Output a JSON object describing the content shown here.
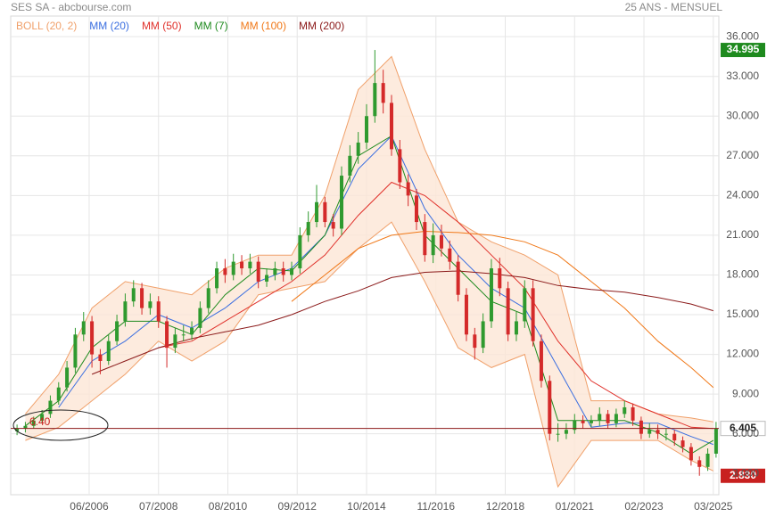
{
  "chart_data": {
    "type": "candlestick",
    "title": "SES SA - abcbourse.com",
    "subtitle": "25 ANS - MENSUEL",
    "xlim": [
      "03/2004",
      "05/2025"
    ],
    "xticks": [
      "06/2006",
      "07/2008",
      "08/2010",
      "09/2012",
      "10/2014",
      "11/2016",
      "12/2018",
      "01/2021",
      "02/2023",
      "03/2025"
    ],
    "ylim": [
      1.4,
      36.75
    ],
    "yticks": [
      {
        "value": 3,
        "label": "3.000"
      },
      {
        "value": 6,
        "label": "6.000"
      },
      {
        "value": 9,
        "label": "9.000"
      },
      {
        "value": 12,
        "label": "12.000"
      },
      {
        "value": 15,
        "label": "15.000"
      },
      {
        "value": 18,
        "label": "18.000"
      },
      {
        "value": 21,
        "label": "21.000"
      },
      {
        "value": 24,
        "label": "24.000"
      },
      {
        "value": 27,
        "label": "27.000"
      },
      {
        "value": 30,
        "label": "30.000"
      },
      {
        "value": 33,
        "label": "33.000"
      },
      {
        "value": 36,
        "label": "36.000"
      }
    ],
    "grid": true,
    "up_color": "#2f9a2f",
    "down_color": "#d42a2a",
    "candles": {
      "x": [
        "04/2004",
        "07/2004",
        "10/2004",
        "01/2005",
        "04/2005",
        "07/2005",
        "10/2005",
        "01/2006",
        "04/2006",
        "07/2006",
        "10/2006",
        "01/2007",
        "04/2007",
        "07/2007",
        "10/2007",
        "01/2008",
        "04/2008",
        "07/2008",
        "10/2008",
        "01/2009",
        "04/2009",
        "07/2009",
        "10/2009",
        "01/2010",
        "04/2010",
        "07/2010",
        "10/2010",
        "01/2011",
        "04/2011",
        "07/2011",
        "10/2011",
        "01/2012",
        "04/2012",
        "07/2012",
        "10/2012",
        "01/2013",
        "04/2013",
        "07/2013",
        "10/2013",
        "01/2014",
        "04/2014",
        "07/2014",
        "10/2014",
        "01/2015",
        "04/2015",
        "07/2015",
        "10/2015",
        "01/2016",
        "04/2016",
        "07/2016",
        "10/2016",
        "01/2017",
        "04/2017",
        "07/2017",
        "10/2017",
        "01/2018",
        "04/2018",
        "07/2018",
        "10/2018",
        "01/2019",
        "04/2019",
        "07/2019",
        "10/2019",
        "01/2020",
        "04/2020",
        "07/2020",
        "10/2020",
        "01/2021",
        "04/2021",
        "07/2021",
        "10/2021",
        "01/2022",
        "04/2022",
        "07/2022",
        "10/2022",
        "01/2023",
        "04/2023",
        "07/2023",
        "10/2023",
        "01/2024",
        "04/2024",
        "07/2024",
        "10/2024",
        "01/2025",
        "04/2025"
      ],
      "open": [
        6.2,
        6.4,
        6.6,
        7.0,
        7.5,
        8.5,
        9.5,
        11.0,
        13.5,
        14.5,
        12.0,
        11.5,
        13.0,
        14.5,
        16.0,
        17.0,
        15.5,
        16.0,
        14.5,
        12.5,
        13.5,
        13.5,
        14.0,
        15.5,
        17.0,
        18.5,
        18.0,
        19.0,
        18.5,
        19.0,
        17.5,
        18.0,
        18.5,
        18.0,
        18.5,
        21.0,
        22.0,
        23.5,
        22.0,
        21.5,
        25.5,
        27.0,
        28.0,
        30.0,
        32.5,
        31.0,
        27.5,
        25.0,
        24.0,
        22.0,
        19.5,
        21.0,
        20.0,
        19.0,
        16.5,
        13.5,
        12.5,
        14.5,
        18.5,
        17.0,
        13.5,
        14.5,
        17.0,
        13.0,
        10.0,
        6.0,
        6.0,
        6.3,
        7.0,
        6.8,
        7.0,
        7.5,
        6.8,
        7.5,
        8.0,
        7.0,
        6.0,
        6.3,
        6.0,
        6.0,
        5.5,
        5.0,
        4.0,
        3.5,
        4.5
      ],
      "high": [
        6.7,
        6.9,
        7.3,
        7.8,
        8.9,
        9.9,
        11.5,
        14.0,
        15.2,
        14.9,
        12.4,
        13.5,
        15.0,
        16.6,
        17.6,
        17.4,
        16.6,
        16.4,
        14.9,
        14.0,
        14.2,
        14.5,
        16.0,
        17.6,
        19.0,
        19.2,
        19.6,
        19.5,
        19.6,
        19.4,
        18.5,
        19.0,
        19.0,
        19.0,
        21.6,
        22.8,
        24.8,
        23.9,
        22.6,
        26.2,
        27.8,
        28.8,
        30.9,
        34.995,
        33.5,
        31.6,
        28.2,
        25.6,
        24.5,
        22.6,
        21.9,
        21.8,
        20.6,
        19.5,
        17.0,
        14.0,
        15.1,
        19.2,
        19.3,
        17.5,
        15.2,
        17.6,
        17.6,
        13.5,
        10.4,
        6.8,
        6.8,
        7.5,
        7.4,
        7.4,
        8.0,
        7.8,
        7.9,
        8.5,
        8.3,
        7.3,
        6.8,
        6.7,
        6.4,
        6.3,
        5.8,
        5.3,
        4.3,
        4.9,
        6.9
      ],
      "low": [
        5.9,
        6.1,
        6.4,
        6.8,
        7.2,
        8.2,
        9.2,
        10.6,
        13.0,
        11.0,
        10.5,
        11.2,
        12.7,
        14.1,
        15.6,
        15.0,
        15.0,
        14.0,
        11.0,
        12.1,
        13.0,
        13.1,
        13.6,
        15.1,
        16.6,
        17.4,
        17.6,
        18.0,
        18.1,
        17.0,
        17.1,
        17.6,
        17.5,
        17.6,
        18.1,
        20.5,
        21.6,
        21.6,
        20.9,
        21.0,
        25.0,
        26.4,
        27.5,
        29.5,
        30.2,
        27.0,
        24.5,
        23.2,
        21.4,
        19.0,
        18.9,
        19.4,
        18.4,
        16.0,
        13.0,
        11.6,
        12.1,
        14.0,
        16.4,
        13.0,
        13.0,
        14.0,
        12.6,
        9.5,
        5.5,
        5.4,
        5.6,
        6.0,
        6.4,
        6.5,
        6.6,
        6.4,
        6.5,
        7.2,
        6.6,
        5.6,
        5.7,
        5.6,
        5.5,
        5.1,
        4.6,
        3.6,
        2.83,
        3.2,
        4.2
      ],
      "close": [
        6.4,
        6.6,
        7.0,
        7.5,
        8.5,
        9.5,
        11.0,
        13.5,
        14.5,
        12.0,
        11.5,
        13.0,
        14.5,
        16.0,
        17.0,
        15.5,
        16.0,
        14.5,
        12.5,
        13.5,
        13.5,
        14.0,
        15.5,
        17.0,
        18.5,
        18.0,
        19.0,
        18.5,
        19.0,
        17.5,
        18.0,
        18.5,
        18.0,
        18.5,
        21.0,
        22.0,
        23.5,
        22.0,
        21.5,
        25.5,
        27.0,
        28.0,
        30.0,
        32.5,
        31.0,
        27.5,
        25.0,
        24.0,
        22.0,
        19.5,
        21.0,
        20.0,
        19.0,
        16.5,
        13.5,
        12.5,
        14.5,
        18.5,
        17.0,
        13.5,
        14.5,
        17.0,
        13.0,
        10.0,
        6.0,
        6.0,
        6.3,
        7.0,
        6.8,
        7.0,
        7.5,
        6.8,
        7.5,
        8.0,
        7.0,
        6.0,
        6.3,
        6.0,
        6.0,
        5.5,
        5.0,
        4.0,
        3.5,
        4.5,
        6.4
      ]
    },
    "line_x": [
      "07/2004",
      "07/2005",
      "07/2006",
      "07/2007",
      "07/2008",
      "07/2009",
      "07/2010",
      "07/2011",
      "07/2012",
      "07/2013",
      "07/2014",
      "07/2015",
      "07/2016",
      "07/2017",
      "07/2018",
      "07/2019",
      "07/2020",
      "07/2021",
      "07/2022",
      "07/2023",
      "07/2024",
      "03/2025"
    ],
    "bollinger": {
      "name": "BOLL (20, 2)",
      "color": "#f0a06a",
      "fill": "#fde6d6",
      "upper": [
        7.5,
        10.5,
        15.5,
        17.5,
        17.0,
        16.5,
        18.5,
        19.5,
        19.5,
        24.0,
        32.0,
        34.5,
        27.5,
        22.0,
        20.5,
        19.5,
        18.0,
        8.5,
        8.5,
        7.5,
        7.2,
        6.9
      ],
      "lower": [
        5.5,
        6.5,
        8.5,
        10.5,
        13.0,
        11.5,
        13.0,
        16.5,
        17.0,
        17.5,
        20.0,
        22.0,
        17.5,
        12.5,
        11.0,
        12.0,
        2.0,
        5.5,
        5.5,
        5.5,
        4.0,
        3.2
      ]
    },
    "series": [
      {
        "name": "MM (20)",
        "color": "#3b6fe0",
        "values": [
          null,
          8.0,
          11.5,
          13.0,
          15.0,
          14.0,
          15.5,
          17.5,
          18.5,
          21.0,
          26.0,
          28.5,
          23.0,
          19.5,
          17.0,
          15.5,
          11.0,
          6.5,
          6.8,
          6.8,
          5.8,
          5.2
        ]
      },
      {
        "name": "MM (50)",
        "color": "#e0302a",
        "values": [
          null,
          null,
          null,
          null,
          12.5,
          13.0,
          14.5,
          16.0,
          17.5,
          19.5,
          22.5,
          25.0,
          24.0,
          22.0,
          19.5,
          17.0,
          13.0,
          10.0,
          8.5,
          7.5,
          6.5,
          6.4
        ]
      },
      {
        "name": "MM (7)",
        "color": "#1e8a1e",
        "values": [
          6.6,
          8.5,
          12.5,
          14.5,
          14.5,
          13.5,
          16.5,
          18.5,
          18.3,
          21.0,
          27.0,
          28.5,
          21.0,
          18.5,
          16.0,
          15.0,
          7.0,
          7.0,
          7.0,
          6.1,
          4.5,
          5.5
        ]
      },
      {
        "name": "MM (100)",
        "color": "#f07818",
        "values": [
          null,
          null,
          null,
          null,
          null,
          null,
          null,
          null,
          16.0,
          18.0,
          20.0,
          21.0,
          21.3,
          21.2,
          21.0,
          20.5,
          19.5,
          17.5,
          15.5,
          13.0,
          11.0,
          9.5
        ]
      },
      {
        "name": "MM (200)",
        "color": "#8b1a1a",
        "values": [
          null,
          null,
          10.5,
          11.5,
          12.5,
          13.2,
          13.7,
          14.2,
          15.0,
          16.0,
          16.8,
          17.8,
          18.2,
          18.3,
          18.1,
          17.8,
          17.2,
          16.9,
          16.7,
          16.3,
          15.8,
          15.3
        ]
      }
    ],
    "max_price": 34.995,
    "last_price": {
      "value": 6.405,
      "label": "6.405"
    },
    "min_price": {
      "value": 2.83,
      "label": "2.830"
    },
    "annotation": {
      "value": 6.4,
      "label": "6.40"
    }
  }
}
